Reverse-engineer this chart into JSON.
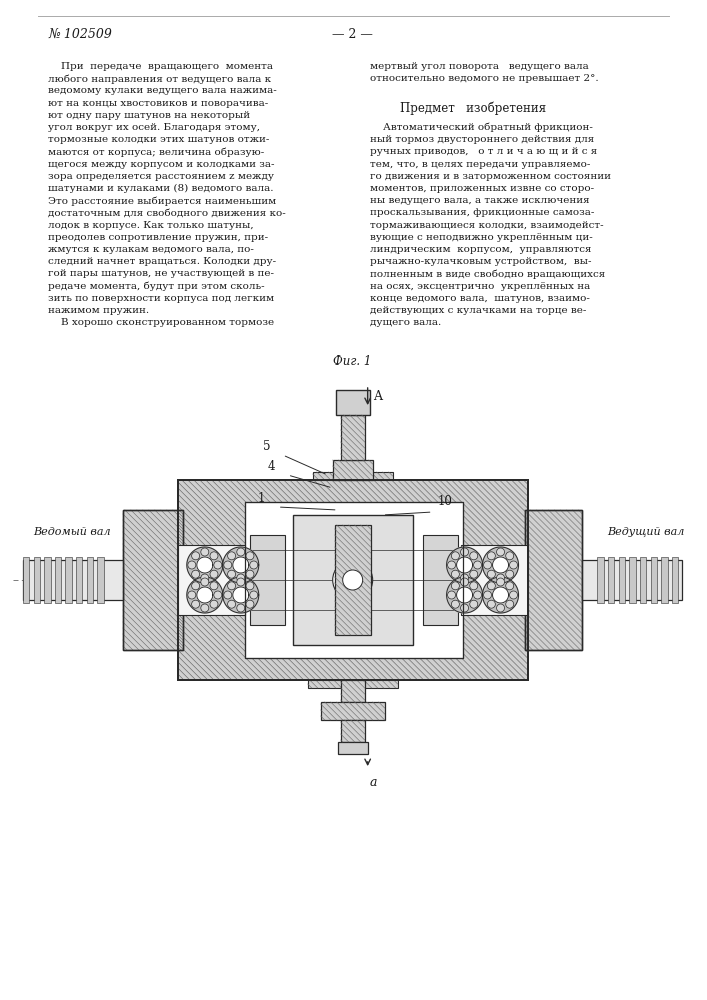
{
  "patent_number": "№ 102509",
  "page_number": "— 2 —",
  "background_color": "#ffffff",
  "text_color": "#1a1a1a",
  "left_col_lines": [
    "    При  передаче  вращающего  момента",
    "любого направления от ведущего вала к",
    "ведомому кулаки ведущего вала нажима-",
    "ют на концы хвостовиков и поворачива-",
    "ют одну пару шатунов на некоторый",
    "угол вокруг их осей. Благодаря этому,",
    "тормозные колодки этих шатунов отжи-",
    "маются от корпуса; величина образую-",
    "щегося между корпусом и колодками за-",
    "зора определяется расстоянием z между",
    "шатунами и кулаками (8) ведомого вала.",
    "Это расстояние выбирается наименьшим",
    "достаточным для свободного движения ко-",
    "лодок в корпусе. Как только шатуны,",
    "преодолев сопротивление пружин, при-",
    "жмутся к кулакам ведомого вала, по-",
    "следний начнет вращаться. Колодки дру-",
    "гой пары шатунов, не участвующей в пе-",
    "редаче момента, будут при этом сколь-",
    "зить по поверхности корпуса под легким",
    "нажимом пружин.",
    "    В хорошо сконструированном тормозе"
  ],
  "right_col_line1": "мертвый угол поворота   ведущего вала",
  "right_col_line2": "относительно ведомого не превышает 2°.",
  "predmet_heading": "Предмет   изобретения",
  "right_col_body": [
    "    Автоматический обратный фрикцион-",
    "ный тормоз двустороннего действия для",
    "ручных приводов,   о т л и ч а ю щ и й с я",
    "тем, что, в целях передачи управляемо-",
    "го движения и в заторможенном состоянии",
    "моментов, приложенных извне со сторо-",
    "ны ведущего вала, а также исключения",
    "проскальзывания, фрикционные самоза-",
    "тормаживающиеся колодки, взаимодейст-",
    "вующие с неподвижно укреплённым ци-",
    "линдрическим  корпусом,  управляются",
    "рычажно-кулачковым устройством,  вы-",
    "полненным в виде свободно вращающихся",
    "на осях, эксцентрично  укреплённых на",
    "конце ведомого вала,  шатунов, взаимо-",
    "действующих с кулачками на торце ве-",
    "дущего вала."
  ],
  "fig_label": "Фиг. 1",
  "label_A": "A",
  "label_a": "a",
  "label_vedomyi": "Ведомый вал",
  "label_vedushchiy": "Ведущий вал",
  "label_1": "1",
  "label_4": "4",
  "label_5": "5",
  "label_10": "10",
  "lc": "#2a2a2a",
  "hatch_color": "#555555",
  "fill_dark": "#aaaaaa",
  "fill_mid": "#cccccc",
  "fill_light": "#e8e8e8"
}
